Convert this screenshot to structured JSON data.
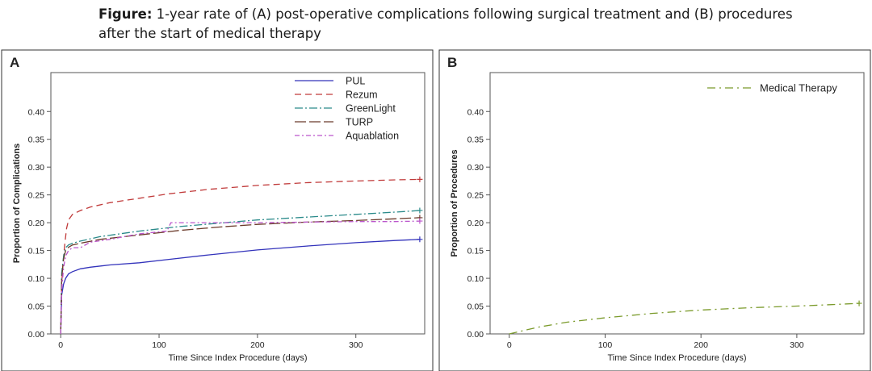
{
  "caption": {
    "label": "Figure:",
    "text": "1-year rate of (A) post-operative complications following surgical treatment and (B) procedures after the start of medical therapy"
  },
  "chart_data": [
    {
      "type": "line",
      "panel_label": "A",
      "xlabel": "Time Since Index Procedure (days)",
      "ylabel": "Proportion of Complications",
      "xlim": [
        -10,
        370
      ],
      "ylim": [
        0,
        0.47
      ],
      "x_ticks": [
        0,
        100,
        200,
        300
      ],
      "y_ticks": [
        0.0,
        0.05,
        0.1,
        0.15,
        0.2,
        0.25,
        0.3,
        0.35,
        0.4
      ],
      "legend_position": "top-right",
      "grid": false,
      "series": [
        {
          "name": "PUL",
          "color": "#3333bb",
          "dash": "",
          "x": [
            0,
            1,
            3,
            5,
            8,
            12,
            20,
            30,
            50,
            80,
            110,
            150,
            200,
            250,
            300,
            340,
            365
          ],
          "y": [
            0.0,
            0.07,
            0.09,
            0.1,
            0.108,
            0.112,
            0.117,
            0.12,
            0.124,
            0.128,
            0.134,
            0.142,
            0.151,
            0.158,
            0.164,
            0.168,
            0.17
          ]
        },
        {
          "name": "Rezum",
          "color": "#c03a3a",
          "dash": "8,5",
          "x": [
            0,
            1,
            2,
            4,
            6,
            8,
            12,
            20,
            30,
            50,
            80,
            110,
            150,
            200,
            250,
            300,
            340,
            365
          ],
          "y": [
            0.0,
            0.09,
            0.12,
            0.16,
            0.19,
            0.205,
            0.215,
            0.222,
            0.228,
            0.236,
            0.244,
            0.252,
            0.26,
            0.267,
            0.272,
            0.275,
            0.277,
            0.278
          ]
        },
        {
          "name": "GreenLight",
          "color": "#2a8a8a",
          "dash": "10,3,2,3",
          "x": [
            0,
            1,
            3,
            5,
            8,
            12,
            20,
            40,
            80,
            120,
            160,
            200,
            250,
            300,
            340,
            365
          ],
          "y": [
            0.0,
            0.11,
            0.14,
            0.155,
            0.16,
            0.163,
            0.167,
            0.175,
            0.185,
            0.193,
            0.199,
            0.205,
            0.21,
            0.215,
            0.219,
            0.222
          ]
        },
        {
          "name": "TURP",
          "color": "#6b3a2a",
          "dash": "14,4",
          "x": [
            0,
            1,
            3,
            5,
            8,
            12,
            20,
            40,
            80,
            120,
            160,
            200,
            250,
            300,
            340,
            365
          ],
          "y": [
            0.0,
            0.1,
            0.135,
            0.15,
            0.156,
            0.16,
            0.163,
            0.17,
            0.178,
            0.186,
            0.192,
            0.197,
            0.201,
            0.204,
            0.207,
            0.209
          ]
        },
        {
          "name": "Aquablation",
          "color": "#bb55cc",
          "dash": "6,3,2,3",
          "x": [
            0,
            1,
            3,
            5,
            8,
            12,
            20,
            30,
            50,
            80,
            108,
            112,
            150,
            200,
            250,
            300,
            340,
            365
          ],
          "y": [
            0.0,
            0.08,
            0.12,
            0.14,
            0.15,
            0.155,
            0.155,
            0.165,
            0.17,
            0.18,
            0.185,
            0.2,
            0.2,
            0.2,
            0.201,
            0.202,
            0.202,
            0.203
          ]
        }
      ]
    },
    {
      "type": "line",
      "panel_label": "B",
      "xlabel": "Time Since Index Procedure (days)",
      "ylabel": "Proportion of Procedures",
      "xlim": [
        -20,
        370
      ],
      "ylim": [
        0,
        0.47
      ],
      "x_ticks": [
        0,
        100,
        200,
        300
      ],
      "y_ticks": [
        0.0,
        0.05,
        0.1,
        0.15,
        0.2,
        0.25,
        0.3,
        0.35,
        0.4
      ],
      "legend_position": "top-right",
      "grid": false,
      "series": [
        {
          "name": "Medical Therapy",
          "color": "#7a9a2a",
          "dash": "10,5,2,5",
          "x": [
            0,
            10,
            30,
            60,
            100,
            150,
            200,
            250,
            300,
            340,
            365
          ],
          "y": [
            0.0,
            0.004,
            0.012,
            0.021,
            0.029,
            0.037,
            0.043,
            0.047,
            0.05,
            0.053,
            0.055
          ]
        }
      ]
    }
  ]
}
